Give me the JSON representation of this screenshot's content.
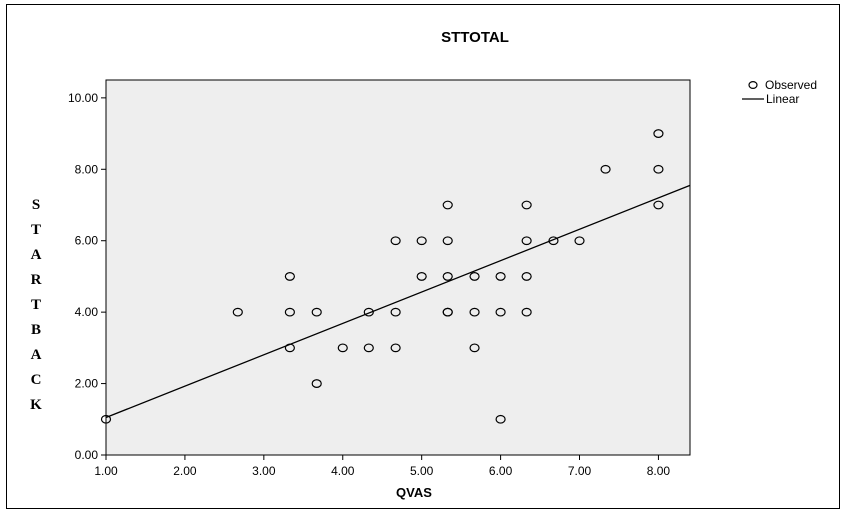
{
  "chart_data": {
    "type": "scatter",
    "title": "STTOTAL",
    "xlabel": "QVAS",
    "ylabel": "STARTBACK",
    "xlim": [
      1,
      8.4
    ],
    "ylim": [
      0,
      10.5
    ],
    "x_ticks": [
      "1.00",
      "2.00",
      "3.00",
      "4.00",
      "5.00",
      "6.00",
      "7.00",
      "8.00"
    ],
    "y_ticks": [
      "0.00",
      "2.00",
      "4.00",
      "6.00",
      "8.00",
      "10.00"
    ],
    "legend": {
      "position": "top-right",
      "entries": [
        "Observed",
        "Linear"
      ]
    },
    "series": [
      {
        "name": "Observed",
        "kind": "points",
        "x": [
          1.0,
          2.67,
          3.33,
          3.33,
          3.33,
          3.67,
          3.67,
          4.0,
          4.33,
          4.33,
          4.67,
          4.67,
          4.67,
          5.0,
          5.0,
          5.33,
          5.33,
          5.33,
          5.33,
          5.33,
          5.67,
          5.67,
          5.67,
          6.0,
          6.0,
          6.0,
          6.33,
          6.33,
          6.33,
          6.33,
          6.67,
          7.0,
          7.33,
          8.0,
          8.0,
          8.0
        ],
        "y": [
          1,
          4,
          5,
          4,
          3,
          4,
          2,
          3,
          4,
          3,
          6,
          4,
          3,
          6,
          5,
          7,
          6,
          5,
          4,
          4,
          5,
          4,
          3,
          5,
          4,
          1,
          7,
          6,
          5,
          4,
          6,
          6,
          8,
          9,
          8,
          7
        ]
      },
      {
        "name": "Linear",
        "kind": "line",
        "x": [
          1.0,
          8.4
        ],
        "y": [
          1.05,
          7.55
        ]
      }
    ]
  }
}
